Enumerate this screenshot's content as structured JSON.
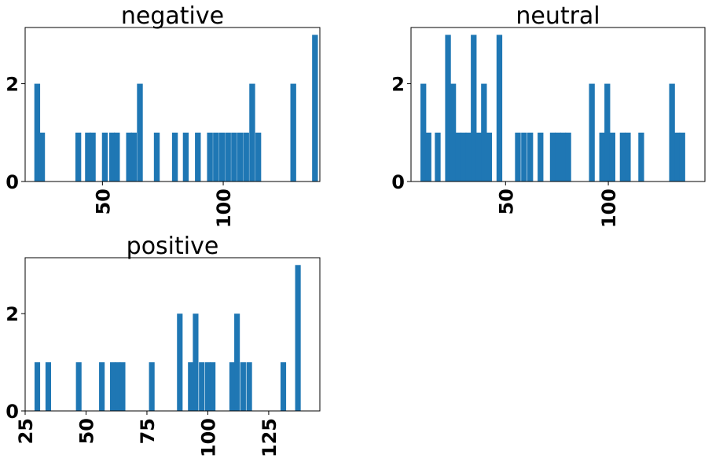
{
  "chart_data": [
    {
      "type": "histogram",
      "title": "negative",
      "color": "#1f77b4",
      "bar_width": 2.4,
      "xlim": [
        18,
        140
      ],
      "ylim": [
        0,
        3.15
      ],
      "xticks": [
        50,
        100
      ],
      "yticks": [
        0,
        2
      ],
      "bars": [
        {
          "x": 23.0,
          "count": 2
        },
        {
          "x": 25.0,
          "count": 1
        },
        {
          "x": 40.0,
          "count": 1
        },
        {
          "x": 44.0,
          "count": 1
        },
        {
          "x": 46.0,
          "count": 1
        },
        {
          "x": 51.0,
          "count": 1
        },
        {
          "x": 54.0,
          "count": 1
        },
        {
          "x": 56.0,
          "count": 1
        },
        {
          "x": 61.0,
          "count": 1
        },
        {
          "x": 63.0,
          "count": 1
        },
        {
          "x": 65.5,
          "count": 2
        },
        {
          "x": 72.5,
          "count": 1
        },
        {
          "x": 80.0,
          "count": 1
        },
        {
          "x": 84.5,
          "count": 1
        },
        {
          "x": 89.5,
          "count": 1
        },
        {
          "x": 94.5,
          "count": 1
        },
        {
          "x": 97.0,
          "count": 1
        },
        {
          "x": 99.5,
          "count": 1
        },
        {
          "x": 102.0,
          "count": 1
        },
        {
          "x": 104.5,
          "count": 1
        },
        {
          "x": 107.0,
          "count": 1
        },
        {
          "x": 109.5,
          "count": 1
        },
        {
          "x": 112.0,
          "count": 2
        },
        {
          "x": 114.5,
          "count": 1
        },
        {
          "x": 129.0,
          "count": 2
        },
        {
          "x": 138.0,
          "count": 3
        }
      ]
    },
    {
      "type": "histogram",
      "title": "neutral",
      "color": "#1f77b4",
      "bar_width": 2.8,
      "xlim": [
        4,
        147
      ],
      "ylim": [
        0,
        3.15
      ],
      "xticks": [
        50,
        100
      ],
      "yticks": [
        0,
        2
      ],
      "bars": [
        {
          "x": 10.0,
          "count": 2
        },
        {
          "x": 12.5,
          "count": 1
        },
        {
          "x": 17.0,
          "count": 1
        },
        {
          "x": 22.0,
          "count": 3
        },
        {
          "x": 24.5,
          "count": 2
        },
        {
          "x": 27.0,
          "count": 1
        },
        {
          "x": 29.5,
          "count": 1
        },
        {
          "x": 32.0,
          "count": 1
        },
        {
          "x": 34.5,
          "count": 3
        },
        {
          "x": 37.0,
          "count": 1
        },
        {
          "x": 39.5,
          "count": 2
        },
        {
          "x": 42.0,
          "count": 1
        },
        {
          "x": 47.0,
          "count": 3
        },
        {
          "x": 56.0,
          "count": 1
        },
        {
          "x": 59.0,
          "count": 1
        },
        {
          "x": 62.0,
          "count": 1
        },
        {
          "x": 67.0,
          "count": 1
        },
        {
          "x": 73.0,
          "count": 1
        },
        {
          "x": 75.5,
          "count": 1
        },
        {
          "x": 78.0,
          "count": 1
        },
        {
          "x": 80.5,
          "count": 1
        },
        {
          "x": 92.0,
          "count": 2
        },
        {
          "x": 97.0,
          "count": 1
        },
        {
          "x": 99.5,
          "count": 2
        },
        {
          "x": 102.0,
          "count": 1
        },
        {
          "x": 107.0,
          "count": 1
        },
        {
          "x": 109.5,
          "count": 1
        },
        {
          "x": 116.0,
          "count": 1
        },
        {
          "x": 131.0,
          "count": 2
        },
        {
          "x": 133.5,
          "count": 1
        },
        {
          "x": 136.0,
          "count": 1
        }
      ]
    },
    {
      "type": "histogram",
      "title": "positive",
      "color": "#1f77b4",
      "bar_width": 2.3,
      "xlim": [
        25,
        146
      ],
      "ylim": [
        0,
        3.15
      ],
      "xticks": [
        25,
        50,
        75,
        100,
        125
      ],
      "yticks": [
        0,
        2
      ],
      "bars": [
        {
          "x": 30.0,
          "count": 1
        },
        {
          "x": 34.5,
          "count": 1
        },
        {
          "x": 47.0,
          "count": 1
        },
        {
          "x": 56.5,
          "count": 1
        },
        {
          "x": 61.0,
          "count": 1
        },
        {
          "x": 63.0,
          "count": 1
        },
        {
          "x": 65.0,
          "count": 1
        },
        {
          "x": 77.0,
          "count": 1
        },
        {
          "x": 88.5,
          "count": 2
        },
        {
          "x": 93.0,
          "count": 1
        },
        {
          "x": 95.0,
          "count": 2
        },
        {
          "x": 97.5,
          "count": 1
        },
        {
          "x": 100.0,
          "count": 1
        },
        {
          "x": 102.0,
          "count": 1
        },
        {
          "x": 110.0,
          "count": 1
        },
        {
          "x": 112.0,
          "count": 2
        },
        {
          "x": 114.5,
          "count": 1
        },
        {
          "x": 117.0,
          "count": 1
        },
        {
          "x": 131.0,
          "count": 1
        },
        {
          "x": 137.0,
          "count": 3
        }
      ]
    }
  ]
}
